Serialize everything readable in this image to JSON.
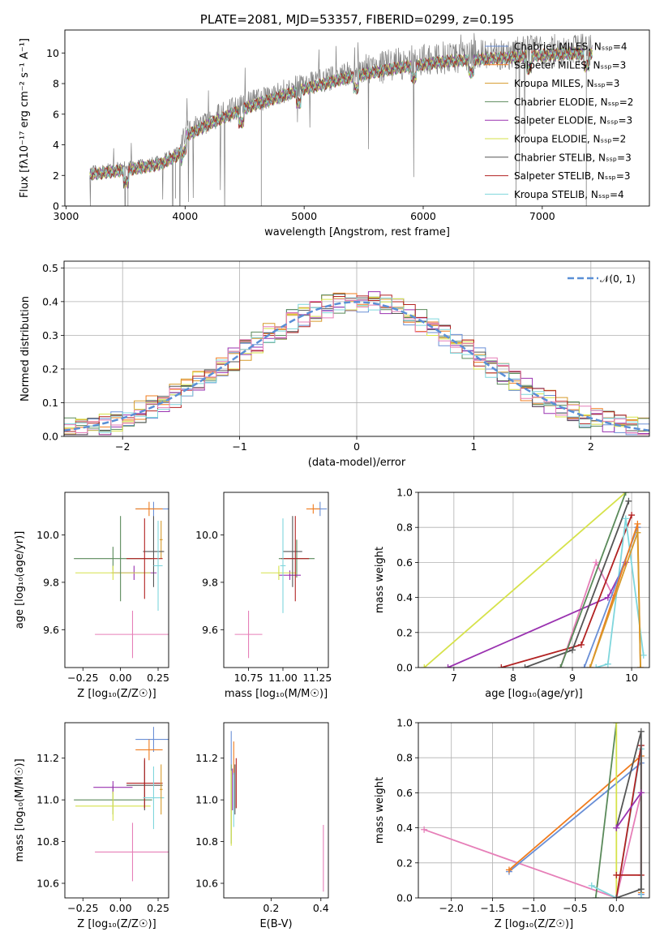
{
  "colors": {
    "Chabrier MILES": "#6a8fd6",
    "Salpeter MILES": "#f07c1e",
    "Kroupa MILES": "#d69a2a",
    "Chabrier ELODIE": "#5a8a5a",
    "Salpeter ELODIE": "#9a32b0",
    "Kroupa ELODIE": "#d6e24a",
    "Chabrier STELIB": "#555555",
    "Salpeter STELIB": "#b22222",
    "Kroupa STELIB": "#7fd6dc",
    "pink": "#e67fb8",
    "normal": "#5a8fd6",
    "spectrum": "#808080"
  },
  "chart_data": [
    {
      "type": "line",
      "title": "PLATE=2081, MJD=53357, FIBERID=0299, z=0.195",
      "xlabel": "wavelength [Angstrom, rest frame]",
      "ylabel": "Flux [fλ10⁻¹⁷ erg cm⁻² s⁻¹ A⁻¹]",
      "xlim": [
        2990,
        7900
      ],
      "ylim": [
        0,
        11.5
      ],
      "xticks": [
        "3000",
        "4000",
        "5000",
        "6000",
        "7000"
      ],
      "yticks": [
        "0",
        "2",
        "4",
        "6",
        "8",
        "10"
      ],
      "legend_loc": "upper-right",
      "legend": [
        "Chabrier MILES, Nₛₛₚ=4",
        "Salpeter MILES, Nₛₛₚ=3",
        "Kroupa MILES, Nₛₛₚ=3",
        "Chabrier ELODIE, Nₛₛₚ=2",
        "Salpeter ELODIE, Nₛₛₚ=3",
        "Kroupa ELODIE, Nₛₛₚ=2",
        "Chabrier STELIB, Nₛₛₚ=3",
        "Salpeter STELIB, Nₛₛₚ=3",
        "Kroupa STELIB, Nₛₛₚ=4"
      ],
      "continuum": {
        "x": [
          3200,
          3400,
          3600,
          3800,
          3950,
          4000,
          4200,
          4400,
          4600,
          4800,
          5000,
          5200,
          5400,
          5600,
          5800,
          6000,
          6200,
          6400,
          6600,
          6800,
          7000,
          7200,
          7400
        ],
        "y": [
          2.3,
          2.5,
          2.7,
          3.0,
          3.6,
          4.8,
          5.6,
          6.3,
          6.9,
          7.4,
          7.9,
          8.3,
          8.7,
          9.0,
          9.3,
          9.5,
          9.7,
          9.8,
          9.9,
          10.0,
          10.1,
          10.2,
          10.2
        ]
      }
    },
    {
      "type": "histogram",
      "xlabel": "(data-model)/error",
      "ylabel": "Normed distribution",
      "xlim": [
        -2.5,
        2.5
      ],
      "ylim": [
        0,
        0.52
      ],
      "xticks": [
        "−2",
        "−1",
        "0",
        "1",
        "2"
      ],
      "yticks": [
        "0.0",
        "0.1",
        "0.2",
        "0.3",
        "0.4",
        "0.5"
      ],
      "legend": "𝒩(0, 1)",
      "grid": true,
      "bin_width": 0.1
    },
    {
      "type": "scatter",
      "xlabel": "Z [log₁₀(Z/Z☉)]",
      "ylabel": "age  [log₁₀(age/yr)]",
      "xlim": [
        -0.37,
        0.32
      ],
      "ylim": [
        9.44,
        10.18
      ],
      "xticks": [
        "−0.25",
        "0.00",
        "0.25"
      ],
      "yticks": [
        "9.6",
        "9.8",
        "10.0"
      ],
      "points": [
        {
          "x": 0.22,
          "y": 10.11,
          "xe": 0.12,
          "ye": 0.03,
          "c": "Chabrier MILES"
        },
        {
          "x": 0.19,
          "y": 10.11,
          "xe": 0.09,
          "ye": 0.03,
          "c": "Salpeter MILES"
        },
        {
          "x": 0.27,
          "y": 9.98,
          "xe": 0.01,
          "ye": 0.08,
          "c": "Kroupa MILES"
        },
        {
          "x": -0.05,
          "y": 9.9,
          "xe": 0.26,
          "ye": 0.05,
          "c": "Chabrier ELODIE"
        },
        {
          "x": 0.09,
          "y": 9.84,
          "xe": 0.15,
          "ye": 0.03,
          "c": "Salpeter ELODIE"
        },
        {
          "x": -0.05,
          "y": 9.84,
          "xe": 0.25,
          "ye": 0.03,
          "c": "Kroupa ELODIE"
        },
        {
          "x": 0.22,
          "y": 9.93,
          "xe": 0.07,
          "ye": 0.15,
          "c": "Chabrier STELIB"
        },
        {
          "x": 0.16,
          "y": 9.9,
          "xe": 0.12,
          "ye": 0.17,
          "c": "Salpeter STELIB"
        },
        {
          "x": 0.25,
          "y": 9.87,
          "xe": 0.03,
          "ye": 0.19,
          "c": "Kroupa STELIB"
        },
        {
          "x": 0.08,
          "y": 9.58,
          "xe": 0.25,
          "ye": 0.1,
          "c": "pink"
        },
        {
          "x": 0.0,
          "y": 9.9,
          "xe": 0.0,
          "ye": 0.18,
          "c": "Chabrier ELODIE"
        }
      ]
    },
    {
      "type": "scatter",
      "xlabel": "mass [log₁₀(M/M☉)]",
      "ylabel": "",
      "xlim": [
        10.57,
        11.33
      ],
      "ylim": [
        9.44,
        10.18
      ],
      "xticks": [
        "10.75",
        "11.00",
        "11.25"
      ],
      "yticks": [
        "9.6",
        "9.8",
        "10.0"
      ],
      "points": [
        {
          "x": 11.27,
          "y": 10.11,
          "xe": 0.05,
          "ye": 0.03,
          "c": "Chabrier MILES"
        },
        {
          "x": 11.22,
          "y": 10.11,
          "xe": 0.05,
          "ye": 0.02,
          "c": "Salpeter MILES"
        },
        {
          "x": 11.1,
          "y": 9.9,
          "xe": 0.13,
          "ye": 0.08,
          "c": "Chabrier ELODIE"
        },
        {
          "x": 11.05,
          "y": 9.83,
          "xe": 0.08,
          "ye": 0.02,
          "c": "Salpeter ELODIE"
        },
        {
          "x": 10.97,
          "y": 9.84,
          "xe": 0.13,
          "ye": 0.03,
          "c": "Kroupa ELODIE"
        },
        {
          "x": 11.07,
          "y": 9.93,
          "xe": 0.07,
          "ye": 0.15,
          "c": "Chabrier STELIB"
        },
        {
          "x": 11.09,
          "y": 9.9,
          "xe": 0.1,
          "ye": 0.18,
          "c": "Salpeter STELIB"
        },
        {
          "x": 11.0,
          "y": 9.87,
          "xe": 0.02,
          "ye": 0.2,
          "c": "Kroupa STELIB"
        },
        {
          "x": 10.75,
          "y": 9.58,
          "xe": 0.1,
          "ye": 0.1,
          "c": "pink"
        }
      ]
    },
    {
      "type": "line",
      "xlabel": "age  [log₁₀(age/yr)]",
      "ylabel": "mass weight",
      "xlim": [
        6.4,
        10.3
      ],
      "ylim": [
        0,
        1
      ],
      "xticks": [
        "7",
        "8",
        "9",
        "10"
      ],
      "yticks": [
        "0.0",
        "0.2",
        "0.4",
        "0.6",
        "0.8",
        "1.0"
      ],
      "grid": true,
      "series": [
        {
          "c": "Kroupa ELODIE",
          "x": [
            6.5,
            9.9
          ],
          "y": [
            0.0,
            1.0
          ]
        },
        {
          "c": "pink",
          "x": [
            8.8,
            9.4,
            9.7
          ],
          "y": [
            0.0,
            0.6,
            0.4
          ]
        },
        {
          "c": "Salpeter ELODIE",
          "x": [
            6.9,
            9.6,
            9.9
          ],
          "y": [
            0.0,
            0.4,
            0.6
          ]
        },
        {
          "c": "Salpeter STELIB",
          "x": [
            7.8,
            9.15,
            10.0
          ],
          "y": [
            0.0,
            0.13,
            0.87
          ]
        },
        {
          "c": "Chabrier STELIB",
          "x": [
            8.2,
            9.0,
            9.95
          ],
          "y": [
            0.0,
            0.1,
            0.95
          ]
        },
        {
          "c": "Chabrier ELODIE",
          "x": [
            8.8,
            9.9
          ],
          "y": [
            0.0,
            1.0
          ]
        },
        {
          "c": "Kroupa STELIB",
          "x": [
            9.4,
            9.6,
            9.9,
            10.2
          ],
          "y": [
            0.0,
            0.02,
            0.85,
            0.07
          ]
        },
        {
          "c": "Chabrier MILES",
          "x": [
            9.2,
            10.1
          ],
          "y": [
            0.0,
            0.8
          ]
        },
        {
          "c": "Salpeter MILES",
          "x": [
            9.3,
            10.1,
            10.15
          ],
          "y": [
            0.0,
            0.82,
            0.0
          ]
        },
        {
          "c": "Kroupa MILES",
          "x": [
            9.3,
            10.1,
            10.15
          ],
          "y": [
            0.0,
            0.77,
            0.0
          ]
        }
      ]
    },
    {
      "type": "scatter",
      "xlabel": "Z [log₁₀(Z/Z☉)]",
      "ylabel": "mass [log₁₀(M/M☉)]",
      "xlim": [
        -0.37,
        0.32
      ],
      "ylim": [
        10.53,
        11.37
      ],
      "xticks": [
        "−0.25",
        "0.00",
        "0.25"
      ],
      "yticks": [
        "10.6",
        "10.8",
        "11.0",
        "11.2"
      ],
      "points": [
        {
          "x": 0.22,
          "y": 11.29,
          "xe": 0.12,
          "ye": 0.06,
          "c": "Chabrier MILES"
        },
        {
          "x": 0.19,
          "y": 11.24,
          "xe": 0.09,
          "ye": 0.05,
          "c": "Salpeter MILES"
        },
        {
          "x": -0.05,
          "y": 11.0,
          "xe": 0.26,
          "ye": 0.07,
          "c": "Chabrier ELODIE"
        },
        {
          "x": -0.05,
          "y": 11.06,
          "xe": 0.13,
          "ye": 0.03,
          "c": "Salpeter ELODIE"
        },
        {
          "x": -0.05,
          "y": 10.97,
          "xe": 0.25,
          "ye": 0.07,
          "c": "Kroupa ELODIE"
        },
        {
          "x": 0.16,
          "y": 11.07,
          "xe": 0.12,
          "ye": 0.12,
          "c": "Chabrier STELIB"
        },
        {
          "x": 0.16,
          "y": 11.08,
          "xe": 0.12,
          "ye": 0.12,
          "c": "Salpeter STELIB"
        },
        {
          "x": 0.22,
          "y": 11.01,
          "xe": 0.07,
          "ye": 0.15,
          "c": "Kroupa STELIB"
        },
        {
          "x": 0.08,
          "y": 10.75,
          "xe": 0.25,
          "ye": 0.14,
          "c": "pink"
        },
        {
          "x": 0.27,
          "y": 11.05,
          "xe": 0.01,
          "ye": 0.12,
          "c": "Kroupa MILES"
        }
      ]
    },
    {
      "type": "scatter",
      "xlabel": "E(B-V)",
      "ylabel": "",
      "xlim": [
        0.01,
        0.43
      ],
      "ylim": [
        10.53,
        11.37
      ],
      "xticks": [
        "0.2",
        "0.4"
      ],
      "yticks": [
        "10.6",
        "10.8",
        "11.0",
        "11.2"
      ],
      "points": [
        {
          "x": 0.04,
          "y": 11.25,
          "xe": 0.0,
          "ye": 0.08,
          "c": "Chabrier MILES"
        },
        {
          "x": 0.05,
          "y": 11.2,
          "xe": 0.0,
          "ye": 0.08,
          "c": "Salpeter MILES"
        },
        {
          "x": 0.04,
          "y": 10.98,
          "xe": 0.0,
          "ye": 0.19,
          "c": "Chabrier ELODIE"
        },
        {
          "x": 0.045,
          "y": 11.05,
          "xe": 0.0,
          "ye": 0.1,
          "c": "Salpeter ELODIE"
        },
        {
          "x": 0.04,
          "y": 10.96,
          "xe": 0.0,
          "ye": 0.18,
          "c": "Kroupa ELODIE"
        },
        {
          "x": 0.055,
          "y": 11.05,
          "xe": 0.0,
          "ye": 0.12,
          "c": "Chabrier STELIB"
        },
        {
          "x": 0.06,
          "y": 11.08,
          "xe": 0.0,
          "ye": 0.12,
          "c": "Salpeter STELIB"
        },
        {
          "x": 0.05,
          "y": 11.0,
          "xe": 0.0,
          "ye": 0.13,
          "c": "Kroupa STELIB"
        },
        {
          "x": 0.41,
          "y": 10.72,
          "xe": 0.0,
          "ye": 0.16,
          "c": "pink"
        }
      ]
    },
    {
      "type": "line",
      "xlabel": "Z [log₁₀(Z/Z☉)]",
      "ylabel": "mass weight",
      "xlim": [
        -2.4,
        0.4
      ],
      "ylim": [
        0,
        1
      ],
      "xticks": [
        "−2.0",
        "−1.5",
        "−1.0",
        "−0.5",
        "0.0"
      ],
      "yticks": [
        "0.0",
        "0.2",
        "0.4",
        "0.6",
        "0.8",
        "1.0"
      ],
      "grid": true,
      "series": [
        {
          "c": "pink",
          "x": [
            -2.33,
            0.0,
            0.3,
            0.3
          ],
          "y": [
            0.39,
            0.0,
            0.6,
            0.0
          ]
        },
        {
          "c": "Chabrier MILES",
          "x": [
            -1.3,
            0.3,
            0.3
          ],
          "y": [
            0.15,
            0.77,
            0.02
          ]
        },
        {
          "c": "Salpeter MILES",
          "x": [
            -1.3,
            0.3,
            0.3
          ],
          "y": [
            0.16,
            0.81,
            0.03
          ]
        },
        {
          "c": "Chabrier ELODIE",
          "x": [
            -0.25,
            0.0
          ],
          "y": [
            0.0,
            1.0
          ]
        },
        {
          "c": "Kroupa ELODIE",
          "x": [
            0.0,
            0.0
          ],
          "y": [
            0.0,
            1.0
          ]
        },
        {
          "c": "Kroupa STELIB",
          "x": [
            -0.3,
            0.0,
            0.3,
            0.3
          ],
          "y": [
            0.07,
            0.0,
            0.85,
            0.0
          ]
        },
        {
          "c": "Salpeter STELIB",
          "x": [
            0.0,
            0.3,
            0.3,
            0.0
          ],
          "y": [
            0.0,
            0.87,
            0.13,
            0.13
          ]
        },
        {
          "c": "Chabrier STELIB",
          "x": [
            0.0,
            0.3,
            0.3,
            0.0
          ],
          "y": [
            0.4,
            0.95,
            0.05,
            0.0
          ]
        },
        {
          "c": "Salpeter ELODIE",
          "x": [
            0.0,
            0.3
          ],
          "y": [
            0.4,
            0.6
          ]
        }
      ]
    }
  ]
}
